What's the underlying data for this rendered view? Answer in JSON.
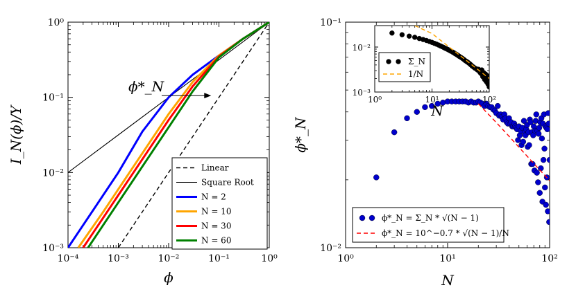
{
  "chart_data": [
    {
      "type": "line",
      "xscale": "log",
      "yscale": "log",
      "xlim": [
        0.0001,
        1
      ],
      "ylim": [
        0.001,
        1
      ],
      "xlabel": "ϕ",
      "ylabel": "I_N(ϕ)/Y",
      "x_tick_values": [
        0.0001,
        0.001,
        0.01,
        0.1,
        1
      ],
      "x_tick_labels": [
        "10⁻⁴",
        "10⁻³",
        "10⁻²",
        "10⁻¹",
        "10⁰"
      ],
      "y_tick_values": [
        0.001,
        0.01,
        0.1,
        1
      ],
      "y_tick_labels": [
        "10⁻³",
        "10⁻²",
        "10⁻¹",
        "10⁰"
      ],
      "legend_position": "lower-right",
      "series": [
        {
          "name": "Linear",
          "color": "#000000",
          "style": "dashed",
          "x": [
            0.001,
            0.01,
            0.1,
            1
          ],
          "y": [
            0.001,
            0.01,
            0.1,
            1
          ]
        },
        {
          "name": "Square Root",
          "color": "#000000",
          "style": "solid",
          "x": [
            0.0001,
            0.001,
            0.01,
            0.1,
            1
          ],
          "y": [
            0.01,
            0.0316,
            0.1,
            0.316,
            1
          ]
        },
        {
          "name": "N = 2",
          "color": "#0000ff",
          "style": "solid",
          "x": [
            0.0001,
            0.0003,
            0.001,
            0.003,
            0.01,
            0.03,
            0.1,
            0.3,
            1
          ],
          "y": [
            0.001,
            0.003,
            0.01,
            0.035,
            0.1,
            0.2,
            0.36,
            0.6,
            1
          ]
        },
        {
          "name": "N = 10",
          "color": "#ffa500",
          "style": "solid",
          "x": [
            0.00016,
            0.0005,
            0.001,
            0.003,
            0.01,
            0.03,
            0.1,
            0.3,
            1
          ],
          "y": [
            0.001,
            0.003,
            0.006,
            0.018,
            0.06,
            0.16,
            0.36,
            0.6,
            1
          ]
        },
        {
          "name": "N = 30",
          "color": "#ff0000",
          "style": "solid",
          "x": [
            0.0002,
            0.0006,
            0.001,
            0.003,
            0.01,
            0.03,
            0.1,
            0.3,
            1
          ],
          "y": [
            0.001,
            0.003,
            0.005,
            0.015,
            0.05,
            0.14,
            0.35,
            0.6,
            1
          ]
        },
        {
          "name": "N = 60",
          "color": "#008000",
          "style": "solid",
          "x": [
            0.00025,
            0.0008,
            0.001,
            0.003,
            0.01,
            0.03,
            0.1,
            0.3,
            1
          ],
          "y": [
            0.001,
            0.0032,
            0.004,
            0.012,
            0.04,
            0.12,
            0.34,
            0.6,
            1
          ]
        }
      ],
      "annotations": [
        {
          "text": "ϕ*_N",
          "arrow_from": [
            0.01,
            0.11
          ],
          "arrow_to": [
            0.07,
            0.11
          ]
        }
      ],
      "legend": [
        "Linear",
        "Square Root",
        "N = 2",
        "N = 10",
        "N = 30",
        "N = 60"
      ]
    },
    {
      "type": "scatter",
      "xscale": "log",
      "yscale": "log",
      "xlim": [
        1,
        100
      ],
      "ylim": [
        0.01,
        0.1
      ],
      "xlabel": "N",
      "ylabel": "ϕ*_N",
      "x_tick_values": [
        1,
        10,
        100
      ],
      "x_tick_labels": [
        "10⁰",
        "10¹",
        "10²"
      ],
      "y_tick_values": [
        0.01,
        0.1
      ],
      "y_tick_labels": [
        "10⁻²",
        "10⁻¹"
      ],
      "legend_position": "lower-left",
      "series": [
        {
          "name": "ϕ*_N = Σ_N * √(N − 1)",
          "color": "#0000cc",
          "marker": "circle",
          "x": [
            2,
            3,
            4,
            5,
            6,
            7,
            8,
            9,
            10,
            11,
            12,
            13,
            14,
            15,
            16,
            17,
            18,
            19,
            20,
            21,
            22,
            23,
            24,
            25,
            26,
            27,
            28,
            29,
            30,
            31,
            32,
            33,
            34,
            35,
            36,
            37,
            38,
            39,
            40,
            41,
            42,
            43,
            44,
            45,
            46,
            47,
            48,
            49,
            50,
            51,
            52,
            53,
            54,
            55,
            56,
            57,
            58,
            59,
            60,
            61,
            62,
            63,
            64,
            65,
            66,
            67,
            68,
            69,
            70,
            71,
            72,
            73,
            74,
            75,
            76,
            77,
            78,
            79,
            80,
            81,
            82,
            83,
            84,
            85,
            86,
            87,
            88,
            89,
            90,
            91,
            92,
            93,
            94,
            95,
            96,
            97,
            98,
            99,
            100
          ],
          "y": [
            0.0205,
            0.0325,
            0.0375,
            0.04,
            0.042,
            0.0425,
            0.0435,
            0.044,
            0.0445,
            0.0445,
            0.0445,
            0.0445,
            0.0445,
            0.0445,
            0.044,
            0.0445,
            0.044,
            0.044,
            0.0445,
            0.044,
            0.0435,
            0.0425,
            0.0435,
            0.0425,
            0.042,
            0.042,
            0.041,
            0.0405,
            0.0395,
            0.0425,
            0.0385,
            0.039,
            0.038,
            0.037,
            0.039,
            0.0375,
            0.036,
            0.0355,
            0.0375,
            0.0355,
            0.036,
            0.0345,
            0.0345,
            0.0355,
            0.0345,
            0.034,
            0.0335,
            0.03,
            0.0345,
            0.0315,
            0.033,
            0.0285,
            0.034,
            0.0295,
            0.0365,
            0.0325,
            0.0315,
            0.0335,
            0.035,
            0.028,
            0.0325,
            0.0285,
            0.037,
            0.036,
            0.0235,
            0.0325,
            0.0235,
            0.0315,
            0.0345,
            0.022,
            0.033,
            0.0365,
            0.039,
            0.0215,
            0.033,
            0.0195,
            0.032,
            0.034,
            0.0175,
            0.036,
            0.0225,
            0.0375,
            0.0305,
            0.016,
            0.0355,
            0.0245,
            0.039,
            0.0275,
            0.0185,
            0.0345,
            0.0155,
            0.034,
            0.0205,
            0.0335,
            0.0145,
            0.0395,
            0.0355,
            0.013,
            0.0245
          ]
        },
        {
          "name": "ϕ*_N = 10^−0.7 * √(N − 1)/N",
          "color": "#ff0000",
          "style": "dashed",
          "x": [
            20,
            30,
            40,
            50,
            60,
            70,
            80,
            90,
            100
          ],
          "y": [
            0.0435,
            0.0359,
            0.0312,
            0.0279,
            0.0255,
            0.0236,
            0.0221,
            0.0209,
            0.0198
          ]
        }
      ],
      "legend": [
        "ϕ*_N = Σ_N * √(N − 1)",
        "ϕ*_N = 10^−0.7 * √(N − 1)/N"
      ],
      "inset": {
        "type": "scatter",
        "xscale": "log",
        "yscale": "log",
        "xlim": [
          1,
          100
        ],
        "ylim": [
          0.001,
          0.03
        ],
        "xlabel": "N",
        "x_tick_values": [
          1,
          10,
          100
        ],
        "x_tick_labels": [
          "10⁰",
          "10¹",
          "10²"
        ],
        "y_tick_values": [
          0.001,
          0.01
        ],
        "y_tick_labels": [
          "10⁻³",
          "10⁻²"
        ],
        "legend_position": "lower-left",
        "series": [
          {
            "name": "Σ_N",
            "color": "#000000",
            "marker": "circle",
            "x": [
              2,
              3,
              4,
              5,
              6,
              7,
              8,
              9,
              10,
              11,
              12,
              13,
              14,
              15,
              16,
              17,
              18,
              19,
              20,
              21,
              22,
              23,
              24,
              25,
              26,
              27,
              28,
              29,
              30,
              32,
              34,
              36,
              38,
              40,
              42,
              44,
              46,
              48,
              50,
              53,
              56,
              59,
              62,
              65,
              68,
              71,
              74,
              77,
              80,
              83,
              86,
              89,
              92,
              95,
              98,
              100
            ],
            "y": [
              0.0205,
              0.0188,
              0.0175,
              0.0165,
              0.0155,
              0.0147,
              0.014,
              0.0133,
              0.0127,
              0.0121,
              0.0116,
              0.0111,
              0.0106,
              0.0102,
              0.0098,
              0.0094,
              0.0091,
              0.0088,
              0.0085,
              0.0082,
              0.008,
              0.0077,
              0.0075,
              0.0072,
              0.007,
              0.0068,
              0.0066,
              0.0064,
              0.0062,
              0.0059,
              0.0056,
              0.0053,
              0.005,
              0.0048,
              0.0046,
              0.0044,
              0.0042,
              0.004,
              0.0038,
              0.0036,
              0.0034,
              0.0033,
              0.0031,
              0.0032,
              0.0028,
              0.0026,
              0.0031,
              0.0022,
              0.0027,
              0.0019,
              0.0025,
              0.0017,
              0.0023,
              0.0015,
              0.002,
              0.0013
            ]
          },
          {
            "name": "1/N",
            "color": "#ffa500",
            "style": "dashed",
            "x": [
              5,
              10,
              20,
              50,
              100
            ],
            "y": [
              0.03,
              0.02,
              0.01,
              0.004,
              0.002
            ]
          }
        ],
        "legend": [
          "Σ_N",
          "1/N"
        ]
      }
    }
  ]
}
